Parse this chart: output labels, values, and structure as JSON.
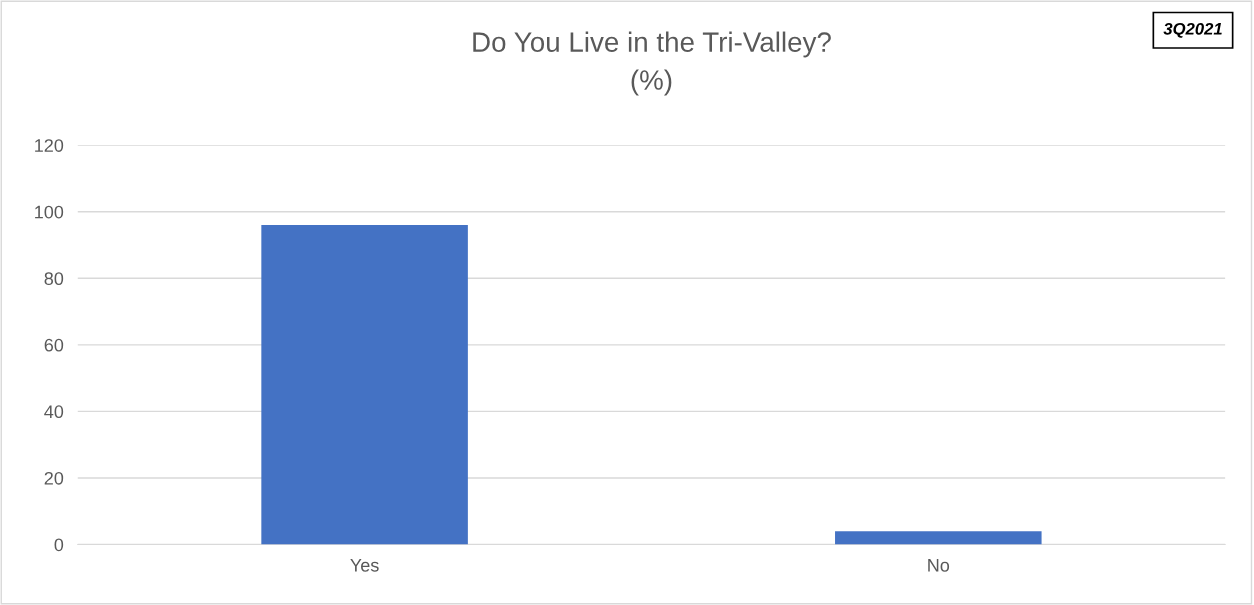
{
  "chart_data": {
    "type": "bar",
    "title": "Do You Live in the Tri-Valley?\n(%)",
    "categories": [
      "Yes",
      "No"
    ],
    "values": [
      96,
      4
    ],
    "color": "#4472c4",
    "ylim": [
      0,
      120
    ],
    "yticks": [
      0,
      20,
      40,
      60,
      80,
      100,
      120
    ],
    "grid": "y",
    "annotations": [
      "3Q2021"
    ]
  }
}
